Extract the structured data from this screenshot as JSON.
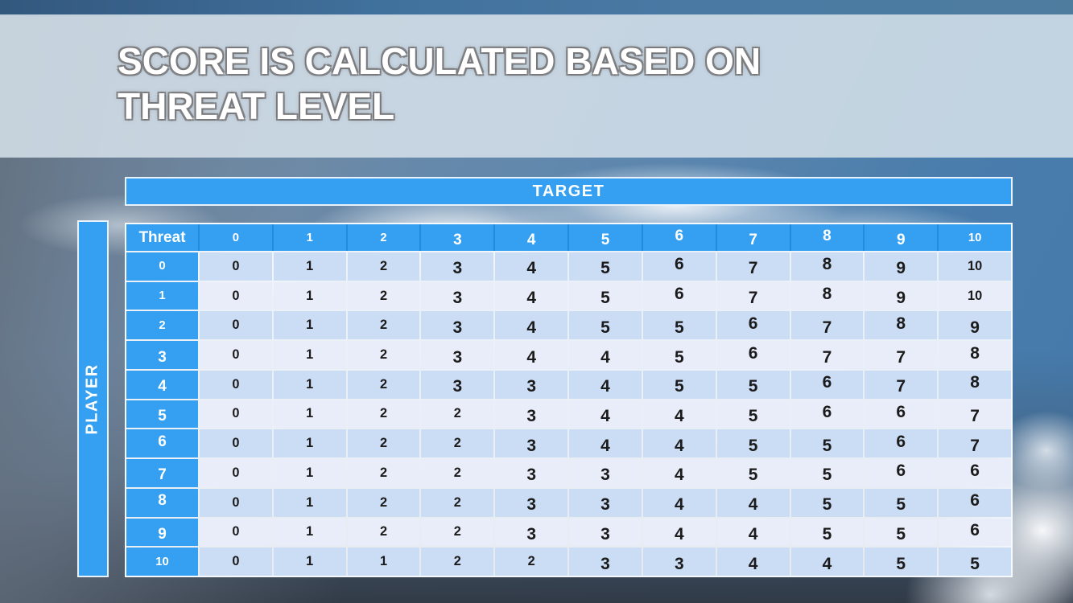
{
  "slide": {
    "title_line1": "SCORE IS CALCULATED BASED ON",
    "title_line2": "THREAT LEVEL"
  },
  "table": {
    "target_label": "TARGET",
    "player_label": "PLAYER",
    "corner_label": "Threat",
    "column_headers": [
      "0",
      "1",
      "2",
      "3",
      "4",
      "5",
      "6",
      "7",
      "8",
      "9",
      "10"
    ],
    "rows": [
      {
        "label": "0",
        "values": [
          "0",
          "1",
          "2",
          "3",
          "4",
          "5",
          "6",
          "7",
          "8",
          "9",
          "10"
        ]
      },
      {
        "label": "1",
        "values": [
          "0",
          "1",
          "2",
          "3",
          "4",
          "5",
          "6",
          "7",
          "8",
          "9",
          "10"
        ]
      },
      {
        "label": "2",
        "values": [
          "0",
          "1",
          "2",
          "3",
          "4",
          "5",
          "5",
          "6",
          "7",
          "8",
          "9"
        ]
      },
      {
        "label": "3",
        "values": [
          "0",
          "1",
          "2",
          "3",
          "4",
          "4",
          "5",
          "6",
          "7",
          "7",
          "8"
        ]
      },
      {
        "label": "4",
        "values": [
          "0",
          "1",
          "2",
          "3",
          "3",
          "4",
          "5",
          "5",
          "6",
          "7",
          "8"
        ]
      },
      {
        "label": "5",
        "values": [
          "0",
          "1",
          "2",
          "2",
          "3",
          "4",
          "4",
          "5",
          "6",
          "6",
          "7"
        ]
      },
      {
        "label": "6",
        "values": [
          "0",
          "1",
          "2",
          "2",
          "3",
          "4",
          "4",
          "5",
          "5",
          "6",
          "7"
        ]
      },
      {
        "label": "7",
        "values": [
          "0",
          "1",
          "2",
          "2",
          "3",
          "3",
          "4",
          "5",
          "5",
          "6",
          "6"
        ]
      },
      {
        "label": "8",
        "values": [
          "0",
          "1",
          "2",
          "2",
          "3",
          "3",
          "4",
          "4",
          "5",
          "5",
          "6"
        ]
      },
      {
        "label": "9",
        "values": [
          "0",
          "1",
          "2",
          "2",
          "3",
          "3",
          "4",
          "4",
          "5",
          "5",
          "6"
        ]
      },
      {
        "label": "10",
        "values": [
          "0",
          "1",
          "1",
          "2",
          "2",
          "3",
          "3",
          "4",
          "4",
          "5",
          "5"
        ]
      }
    ]
  },
  "colors": {
    "accent_blue": "#35A0F1",
    "header_separator_blue": "#1F8CDD",
    "row_shade_dark": "#CBDCF5",
    "row_shade_light": "#E9EDF9",
    "grid_line": "#F6FAFE",
    "cell_text": "#1B1B1B",
    "header_text": "#FFFFFF",
    "title_text": "#FFFFFF",
    "title_band": "#D5E0E9"
  }
}
